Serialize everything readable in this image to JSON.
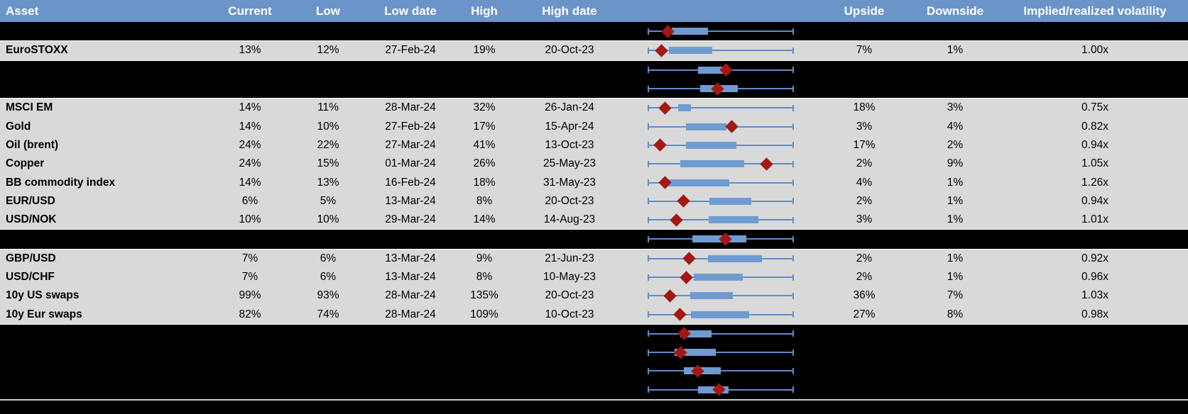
{
  "colors": {
    "header_bg": "#6B94C9",
    "header_text": "#ffffff",
    "data_row_bg": "#d9d9d9",
    "hidden_row_bg": "#000000",
    "box_fill": "#6F9BD1",
    "whisker": "#5F8DC8",
    "diamond": "#A31812"
  },
  "table": {
    "columns": [
      {
        "key": "asset",
        "label": "Asset"
      },
      {
        "key": "current",
        "label": "Current"
      },
      {
        "key": "low",
        "label": "Low"
      },
      {
        "key": "low_date",
        "label": "Low date"
      },
      {
        "key": "high",
        "label": "High"
      },
      {
        "key": "high_date",
        "label": "High date"
      },
      {
        "key": "chart",
        "label": ""
      },
      {
        "key": "upside",
        "label": "Upside"
      },
      {
        "key": "downside",
        "label": "Downside"
      },
      {
        "key": "implied",
        "label": "Implied/realized volatility"
      }
    ],
    "rows": [
      {
        "type": "black",
        "chart": {
          "box": [
            0.165,
            0.413
          ],
          "diamond": 0.136
        }
      },
      {
        "type": "data",
        "asset": "EuroSTOXX",
        "current": "13%",
        "low": "12%",
        "low_date": "27-Feb-24",
        "high": "19%",
        "high_date": "20-Oct-23",
        "upside": "7%",
        "downside": "1%",
        "implied": "1.00x",
        "chart": {
          "box": [
            0.144,
            0.443
          ],
          "diamond": 0.096
        }
      },
      {
        "type": "black",
        "chart": {
          "box": [
            0.346,
            0.557
          ],
          "diamond": 0.535
        }
      },
      {
        "type": "black",
        "chart": {
          "box": [
            0.358,
            0.617
          ],
          "diamond": 0.479
        }
      },
      {
        "type": "data",
        "asset": "MSCI EM",
        "current": "14%",
        "low": "11%",
        "low_date": "28-Mar-24",
        "high": "32%",
        "high_date": "26-Jan-24",
        "upside": "18%",
        "downside": "3%",
        "implied": "0.75x",
        "chart": {
          "box": [
            0.209,
            0.298
          ],
          "diamond": 0.12
        }
      },
      {
        "type": "data",
        "asset": "Gold",
        "current": "14%",
        "low": "10%",
        "low_date": "27-Feb-24",
        "high": "17%",
        "high_date": "15-Apr-24",
        "upside": "3%",
        "downside": "4%",
        "implied": "0.82x",
        "chart": {
          "box": [
            0.262,
            0.537
          ],
          "diamond": 0.573
        }
      },
      {
        "type": "data",
        "asset": "Oil (brent)",
        "current": "24%",
        "low": "22%",
        "low_date": "27-Mar-24",
        "high": "41%",
        "high_date": "13-Oct-23",
        "upside": "17%",
        "downside": "2%",
        "implied": "0.94x",
        "chart": {
          "box": [
            0.262,
            0.605
          ],
          "diamond": 0.084
        }
      },
      {
        "type": "data",
        "asset": "Copper",
        "current": "24%",
        "low": "15%",
        "low_date": "01-Mar-24",
        "high": "26%",
        "high_date": "25-May-23",
        "upside": "2%",
        "downside": "9%",
        "implied": "1.05x",
        "chart": {
          "box": [
            0.225,
            0.662
          ],
          "diamond": 0.812
        }
      },
      {
        "type": "data",
        "asset": "BB commodity index",
        "current": "14%",
        "low": "13%",
        "low_date": "16-Feb-24",
        "high": "18%",
        "high_date": "31-May-23",
        "upside": "4%",
        "downside": "1%",
        "implied": "1.26x",
        "chart": {
          "box": [
            0.136,
            0.557
          ],
          "diamond": 0.12
        }
      },
      {
        "type": "data",
        "asset": "EUR/USD",
        "current": "6%",
        "low": "5%",
        "low_date": "13-Mar-24",
        "high": "8%",
        "high_date": "20-Oct-23",
        "upside": "2%",
        "downside": "1%",
        "implied": "0.94x",
        "chart": {
          "box": [
            0.424,
            0.71
          ],
          "diamond": 0.246
        }
      },
      {
        "type": "data",
        "asset": "USD/NOK",
        "current": "10%",
        "low": "10%",
        "low_date": "29-Mar-24",
        "high": "14%",
        "high_date": "14-Aug-23",
        "upside": "3%",
        "downside": "1%",
        "implied": "1.01x",
        "chart": {
          "box": [
            0.419,
            0.756
          ],
          "diamond": 0.196
        }
      },
      {
        "type": "black",
        "chart": {
          "box": [
            0.306,
            0.675
          ],
          "diamond": 0.533
        }
      },
      {
        "type": "data",
        "asset": "GBP/USD",
        "current": "7%",
        "low": "6%",
        "low_date": "13-Mar-24",
        "high": "9%",
        "high_date": "21-Jun-23",
        "upside": "2%",
        "downside": "1%",
        "implied": "0.92x",
        "chart": {
          "box": [
            0.414,
            0.783
          ],
          "diamond": 0.285
        }
      },
      {
        "type": "data",
        "asset": "USD/CHF",
        "current": "7%",
        "low": "6%",
        "low_date": "13-Mar-24",
        "high": "8%",
        "high_date": "10-May-23",
        "upside": "2%",
        "downside": "1%",
        "implied": "0.96x",
        "chart": {
          "box": [
            0.314,
            0.65
          ],
          "diamond": 0.262
        }
      },
      {
        "type": "data",
        "asset": "10y US swaps",
        "current": "99%",
        "low": "93%",
        "low_date": "28-Mar-24",
        "high": "135%",
        "high_date": "20-Oct-23",
        "upside": "36%",
        "downside": "7%",
        "implied": "1.03x",
        "chart": {
          "box": [
            0.291,
            0.585
          ],
          "diamond": 0.155
        }
      },
      {
        "type": "data",
        "asset": "10y Eur swaps",
        "current": "82%",
        "low": "74%",
        "low_date": "28-Mar-24",
        "high": "109%",
        "high_date": "10-Oct-23",
        "upside": "27%",
        "downside": "8%",
        "implied": "0.98x",
        "chart": {
          "box": [
            0.295,
            0.694
          ],
          "diamond": 0.222
        }
      },
      {
        "type": "black",
        "chart": {
          "box": [
            0.222,
            0.438
          ],
          "diamond": 0.249
        }
      },
      {
        "type": "black",
        "chart": {
          "box": [
            0.184,
            0.468
          ],
          "diamond": 0.225
        }
      },
      {
        "type": "black",
        "chart": {
          "box": [
            0.249,
            0.5
          ],
          "diamond": 0.343
        }
      },
      {
        "type": "black",
        "chart": {
          "box": [
            0.343,
            0.552
          ],
          "diamond": 0.489
        }
      }
    ]
  }
}
